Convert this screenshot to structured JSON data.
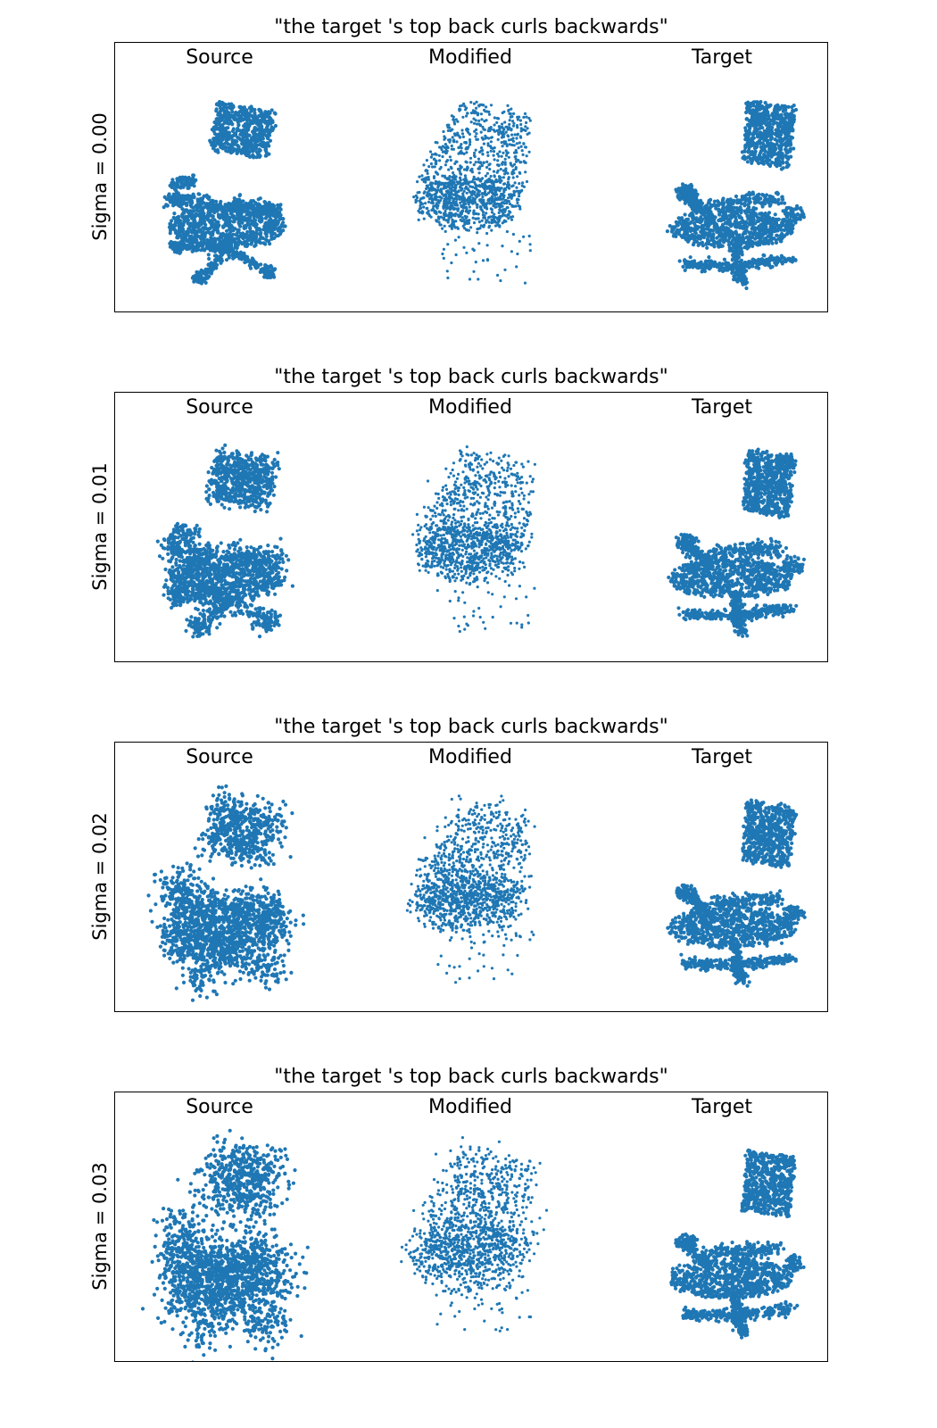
{
  "rows": [
    {
      "title": "\"the target 's top back curls backwards\"",
      "sigma_label": "Sigma = 0.00",
      "sigma": 0.0,
      "columns": [
        "Source",
        "Modified",
        "Target"
      ]
    },
    {
      "title": "\"the target 's top back curls backwards\"",
      "sigma_label": "Sigma = 0.01",
      "sigma": 0.01,
      "columns": [
        "Source",
        "Modified",
        "Target"
      ]
    },
    {
      "title": "\"the target 's top back curls backwards\"",
      "sigma_label": "Sigma = 0.02",
      "sigma": 0.02,
      "columns": [
        "Source",
        "Modified",
        "Target"
      ]
    },
    {
      "title": "\"the target 's top back curls backwards\"",
      "sigma_label": "Sigma = 0.03",
      "sigma": 0.03,
      "columns": [
        "Source",
        "Modified",
        "Target"
      ]
    }
  ],
  "point_color": "#1f77b4",
  "subject": "office-chair-point-cloud"
}
